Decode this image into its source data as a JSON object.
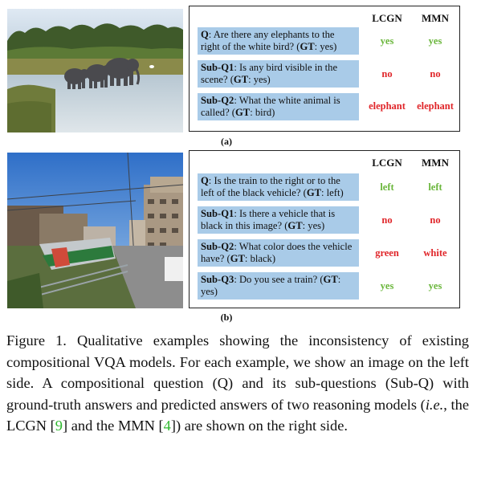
{
  "columns": {
    "model1": "LCGN",
    "model2": "MMN"
  },
  "example_a": {
    "label": "(a)",
    "image_alt": "elephants walking by water",
    "rows": [
      {
        "prefix": "Q",
        "text": ": Are there any elephants to the right of the white bird? (",
        "gt_label": "GT",
        "gt_tail": ": yes)",
        "model1": "yes",
        "model2": "yes",
        "color": "#6ab63b"
      },
      {
        "prefix": "Sub-Q1",
        "text": ": Is any bird visible in the scene? (",
        "gt_label": "GT",
        "gt_tail": ": yes)",
        "model1": "no",
        "model2": "no",
        "color": "#e0262a"
      },
      {
        "prefix": "Sub-Q2",
        "text": ": What the white animal is called? (",
        "gt_label": "GT",
        "gt_tail": ": bird)",
        "model1": "elephant",
        "model2": "elephant",
        "color": "#e0262a"
      }
    ]
  },
  "example_b": {
    "label": "(b)",
    "image_alt": "train next to apartment buildings",
    "rows": [
      {
        "prefix": "Q",
        "text": ":  Is the train to the right or to the left of the black vehicle? (",
        "gt_label": "GT",
        "gt_tail": ": left)",
        "model1": "left",
        "model2": "left",
        "color": "#6ab63b"
      },
      {
        "prefix": "Sub-Q1",
        "text": ": Is there a vehicle that is black in this image? (",
        "gt_label": "GT",
        "gt_tail": ": yes)",
        "model1": "no",
        "model2": "no",
        "color": "#e0262a"
      },
      {
        "prefix": "Sub-Q2",
        "text": ": What color does the vehicle have? (",
        "gt_label": "GT",
        "gt_tail": ": black)",
        "model1": "green",
        "model2": "white",
        "color": "#e0262a"
      },
      {
        "prefix": "Sub-Q3",
        "text": ":  Do you see a train? (",
        "gt_label": "GT",
        "gt_tail": ": yes)",
        "model1": "yes",
        "model2": "yes",
        "color": "#6ab63b"
      }
    ]
  },
  "caption": {
    "part1": "Figure 1.  Qualitative examples showing the inconsistency of existing compositional VQA models.  For each example, we show an image on the left side.  A compositional question (Q) and its sub-questions (Sub-Q) with ground-truth answers and predicted answers of two reasoning models (",
    "ie": "i.e.",
    "part2": ", the LCGN [",
    "cite1": "9",
    "part3": "] and the MMN [",
    "cite2": "4",
    "part4": "]) are shown on the right side."
  }
}
